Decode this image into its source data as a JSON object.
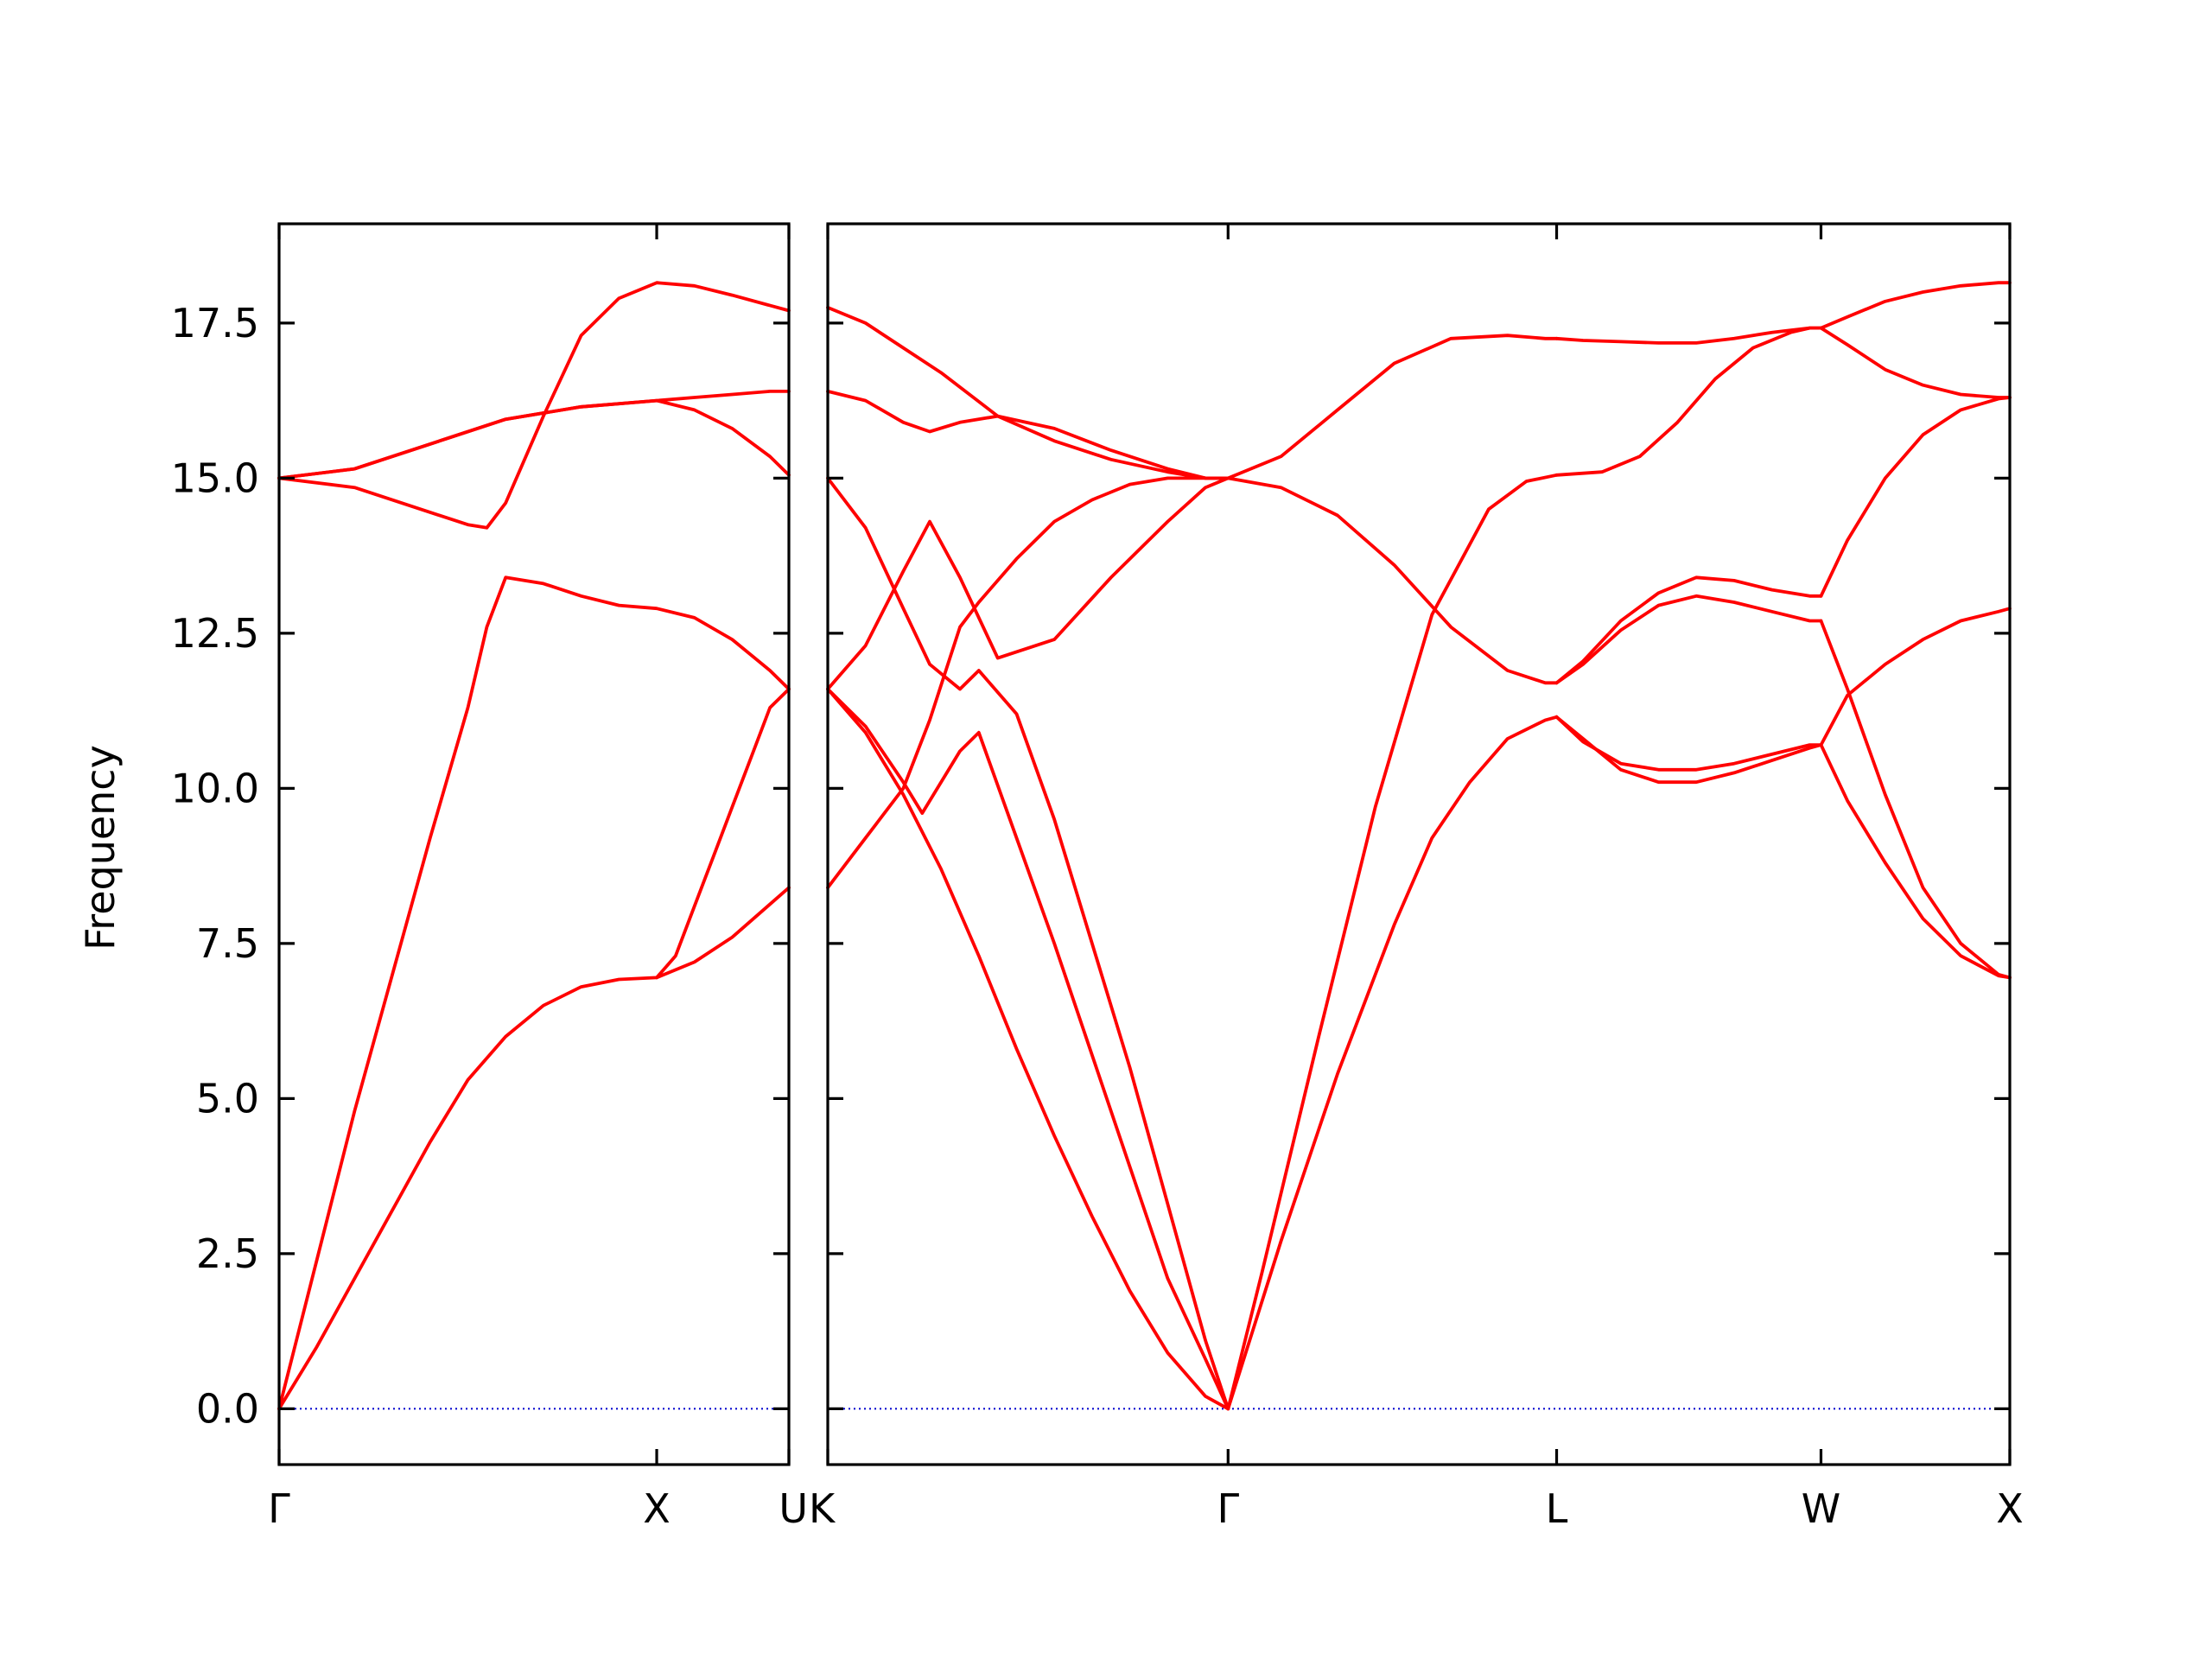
{
  "chart_data": {
    "type": "line",
    "ylabel": "Frequency",
    "ylim": [
      -0.9,
      19.1
    ],
    "yticks": [
      "0.0",
      "2.5",
      "5.0",
      "7.5",
      "10.0",
      "12.5",
      "15.0",
      "17.5"
    ],
    "ytick_values": [
      0,
      2.5,
      5,
      7.5,
      10,
      12.5,
      15,
      17.5
    ],
    "grid": false,
    "legend": "none",
    "colors": {
      "bands": "#ff0000",
      "zero_line": "#0000cc",
      "axes": "#000000"
    },
    "panels": [
      {
        "xlim": [
          0,
          1.35
        ],
        "ticks": [
          {
            "label": "Γ",
            "x": 0
          },
          {
            "label": "X",
            "x": 1
          },
          {
            "label": "U",
            "x": 1.35
          }
        ],
        "series": [
          {
            "x": [
              0,
              0.1,
              0.2,
              0.3,
              0.4,
              0.5,
              0.6,
              0.7,
              0.8,
              0.9,
              1.0,
              1.1,
              1.2,
              1.35
            ],
            "y": [
              0,
              1.0,
              2.1,
              3.2,
              4.3,
              5.3,
              6.0,
              6.5,
              6.8,
              6.92,
              6.95,
              7.2,
              7.6,
              8.4
            ]
          },
          {
            "x": [
              0,
              0.1,
              0.2,
              0.3,
              0.4,
              0.5,
              0.55,
              0.6,
              0.7,
              0.8,
              0.9,
              1.0,
              1.1,
              1.2,
              1.3,
              1.35
            ],
            "y": [
              0,
              2.4,
              4.8,
              7.0,
              9.2,
              11.3,
              12.6,
              13.4,
              13.3,
              13.1,
              12.95,
              12.9,
              12.75,
              12.4,
              11.9,
              11.6
            ]
          },
          {
            "x": [
              0,
              0.2,
              0.4,
              0.5,
              0.55,
              0.6,
              0.7,
              0.8,
              0.9,
              1.0,
              1.1,
              1.2,
              1.35
            ],
            "y": [
              15.0,
              14.85,
              14.45,
              14.25,
              14.2,
              14.6,
              16.0,
              17.3,
              17.9,
              18.15,
              18.1,
              17.95,
              17.7
            ]
          },
          {
            "x": [
              0,
              0.2,
              0.4,
              0.6,
              0.8,
              1.0,
              1.1,
              1.2,
              1.3,
              1.35
            ],
            "y": [
              15.0,
              15.15,
              15.55,
              15.95,
              16.15,
              16.25,
              16.3,
              16.35,
              16.4,
              16.4
            ]
          },
          {
            "x": [
              0,
              0.2,
              0.4,
              0.6,
              0.8,
              1.0,
              1.1,
              1.2,
              1.3,
              1.35
            ],
            "y": [
              15.0,
              15.15,
              15.55,
              15.95,
              16.15,
              16.25,
              16.1,
              15.8,
              15.35,
              15.05
            ]
          },
          {
            "x": [
              1.0,
              1.05,
              1.1,
              1.15,
              1.2,
              1.25,
              1.3,
              1.35
            ],
            "y": [
              6.95,
              7.3,
              8.1,
              8.9,
              9.7,
              10.5,
              11.3,
              11.6
            ]
          }
        ]
      },
      {
        "xlim": [
          0,
          3.13
        ],
        "ticks": [
          {
            "label": "K",
            "x": 0
          },
          {
            "label": "Γ",
            "x": 1.06
          },
          {
            "label": "L",
            "x": 1.93
          },
          {
            "label": "W",
            "x": 2.63
          },
          {
            "label": "X",
            "x": 3.13
          }
        ],
        "series": [
          {
            "x": [
              0,
              0.1,
              0.2,
              0.3,
              0.4,
              0.5,
              0.6,
              0.7,
              0.8,
              0.9,
              1.0,
              1.06
            ],
            "y": [
              11.6,
              10.9,
              9.9,
              8.7,
              7.3,
              5.8,
              4.4,
              3.1,
              1.9,
              0.9,
              0.2,
              0
            ]
          },
          {
            "x": [
              0,
              0.1,
              0.2,
              0.25,
              0.35,
              0.4,
              0.5,
              0.6,
              0.7,
              0.8,
              0.9,
              1.0,
              1.06
            ],
            "y": [
              11.6,
              11.0,
              10.1,
              9.6,
              10.6,
              10.9,
              9.2,
              7.5,
              5.7,
              3.9,
              2.1,
              0.8,
              0
            ]
          },
          {
            "x": [
              0,
              0.1,
              0.2,
              0.27,
              0.35,
              0.4,
              0.5,
              0.6,
              0.7,
              0.8,
              0.9,
              1.0,
              1.06
            ],
            "y": [
              15.0,
              14.2,
              12.9,
              12.0,
              11.6,
              11.9,
              11.2,
              9.5,
              7.5,
              5.5,
              3.3,
              1.1,
              0
            ]
          },
          {
            "x": [
              0,
              0.1,
              0.2,
              0.27,
              0.35,
              0.4,
              0.5,
              0.6,
              0.7,
              0.8,
              0.9,
              1.0,
              1.06
            ],
            "y": [
              8.4,
              9.2,
              10.0,
              11.1,
              12.6,
              13.0,
              13.7,
              14.3,
              14.65,
              14.9,
              15.0,
              15.0,
              15.0
            ]
          },
          {
            "x": [
              0,
              0.1,
              0.2,
              0.27,
              0.35,
              0.45,
              0.6,
              0.75,
              0.9,
              1.0,
              1.06
            ],
            "y": [
              11.6,
              12.3,
              13.5,
              14.3,
              13.4,
              12.1,
              12.4,
              13.4,
              14.3,
              14.85,
              15.0
            ]
          },
          {
            "x": [
              0,
              0.1,
              0.2,
              0.27,
              0.35,
              0.45,
              0.6,
              0.75,
              0.9,
              1.0,
              1.06
            ],
            "y": [
              16.4,
              16.25,
              15.9,
              15.75,
              15.9,
              16.0,
              15.8,
              15.45,
              15.15,
              15.0,
              15.0
            ]
          },
          {
            "x": [
              0,
              0.1,
              0.2,
              0.3,
              0.45,
              0.6,
              0.75,
              0.9,
              1.0,
              1.06
            ],
            "y": [
              17.75,
              17.5,
              17.1,
              16.7,
              16.0,
              15.6,
              15.3,
              15.1,
              15.0,
              15.0
            ]
          },
          {
            "x": [
              1.06,
              1.15,
              1.3,
              1.45,
              1.6,
              1.75,
              1.85,
              1.93
            ],
            "y": [
              0,
              2.2,
              6.0,
              9.7,
              12.8,
              14.5,
              14.95,
              15.05
            ]
          },
          {
            "x": [
              1.06,
              1.2,
              1.35,
              1.5,
              1.6,
              1.7,
              1.8,
              1.9,
              1.93
            ],
            "y": [
              0,
              2.7,
              5.4,
              7.8,
              9.2,
              10.1,
              10.8,
              11.1,
              11.15
            ]
          },
          {
            "x": [
              1.06,
              1.2,
              1.35,
              1.5,
              1.65,
              1.8,
              1.9,
              1.93
            ],
            "y": [
              15.0,
              14.85,
              14.4,
              13.6,
              12.6,
              11.9,
              11.7,
              11.7
            ]
          },
          {
            "x": [
              1.06,
              1.2,
              1.35,
              1.5,
              1.65,
              1.8,
              1.9,
              1.93
            ],
            "y": [
              15.0,
              15.35,
              16.1,
              16.85,
              17.25,
              17.3,
              17.25,
              17.25
            ]
          },
          {
            "x": [
              1.93,
              2.0,
              2.1,
              2.2,
              2.3,
              2.4,
              2.5,
              2.6,
              2.63
            ],
            "y": [
              17.25,
              17.22,
              17.2,
              17.18,
              17.18,
              17.25,
              17.35,
              17.42,
              17.42
            ]
          },
          {
            "x": [
              1.93,
              2.05,
              2.15,
              2.25,
              2.35,
              2.45,
              2.55,
              2.6,
              2.63
            ],
            "y": [
              15.05,
              15.1,
              15.35,
              15.9,
              16.6,
              17.1,
              17.35,
              17.42,
              17.42
            ]
          },
          {
            "x": [
              1.93,
              2.0,
              2.1,
              2.2,
              2.3,
              2.4,
              2.5,
              2.6,
              2.63
            ],
            "y": [
              11.7,
              12.0,
              12.55,
              12.95,
              13.1,
              13.0,
              12.85,
              12.7,
              12.7
            ]
          },
          {
            "x": [
              1.93,
              2.0,
              2.1,
              2.2,
              2.3,
              2.4,
              2.5,
              2.6,
              2.63
            ],
            "y": [
              11.7,
              12.05,
              12.7,
              13.15,
              13.4,
              13.35,
              13.2,
              13.1,
              13.1
            ]
          },
          {
            "x": [
              1.93,
              2.0,
              2.1,
              2.2,
              2.3,
              2.4,
              2.5,
              2.6,
              2.63
            ],
            "y": [
              11.15,
              10.75,
              10.4,
              10.3,
              10.3,
              10.4,
              10.55,
              10.7,
              10.7
            ]
          },
          {
            "x": [
              1.93,
              2.0,
              2.1,
              2.2,
              2.3,
              2.4,
              2.5,
              2.6,
              2.63
            ],
            "y": [
              11.15,
              10.8,
              10.3,
              10.1,
              10.1,
              10.25,
              10.45,
              10.65,
              10.7
            ]
          },
          {
            "x": [
              2.63,
              2.7,
              2.8,
              2.9,
              3.0,
              3.1,
              3.13
            ],
            "y": [
              17.42,
              17.6,
              17.85,
              18.0,
              18.1,
              18.15,
              18.15
            ]
          },
          {
            "x": [
              2.63,
              2.7,
              2.8,
              2.9,
              3.0,
              3.1,
              3.13
            ],
            "y": [
              17.42,
              17.15,
              16.75,
              16.5,
              16.35,
              16.3,
              16.3
            ]
          },
          {
            "x": [
              2.63,
              2.7,
              2.8,
              2.9,
              3.0,
              3.1,
              3.13
            ],
            "y": [
              13.1,
              14.0,
              15.0,
              15.7,
              16.1,
              16.28,
              16.3
            ]
          },
          {
            "x": [
              2.63,
              2.7,
              2.8,
              2.9,
              3.0,
              3.1,
              3.13
            ],
            "y": [
              10.7,
              11.5,
              12.0,
              12.4,
              12.7,
              12.85,
              12.9
            ]
          },
          {
            "x": [
              2.63,
              2.7,
              2.8,
              2.9,
              3.0,
              3.1,
              3.13
            ],
            "y": [
              12.7,
              11.6,
              9.9,
              8.4,
              7.5,
              7.0,
              6.95
            ]
          },
          {
            "x": [
              2.63,
              2.7,
              2.8,
              2.9,
              3.0,
              3.1,
              3.13
            ],
            "y": [
              10.7,
              9.8,
              8.8,
              7.9,
              7.3,
              6.98,
              6.95
            ]
          }
        ]
      }
    ]
  }
}
